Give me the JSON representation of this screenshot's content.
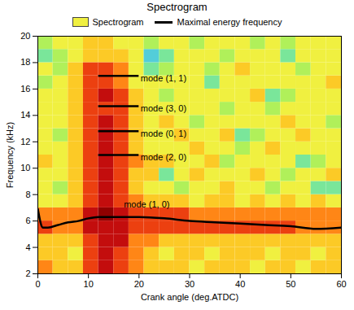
{
  "chart_data": {
    "type": "heatmap",
    "title": "Spectrogram",
    "x_label": "Crank angle (deg.ATDC)",
    "y_label": "Frequency (kHz)",
    "xlim": [
      0,
      60
    ],
    "ylim": [
      2,
      20
    ],
    "xticks": [
      0,
      10,
      20,
      30,
      40,
      50,
      60
    ],
    "yticks": [
      2,
      4,
      6,
      8,
      10,
      12,
      14,
      16,
      18,
      20
    ],
    "legend": "top",
    "cells": {
      "x_edges": [
        0,
        3,
        6,
        9,
        12,
        15,
        18,
        21,
        24,
        27,
        30,
        33,
        36,
        39,
        42,
        45,
        48,
        51,
        54,
        57,
        60
      ],
      "y_edges": [
        2,
        3,
        4,
        5,
        6,
        7,
        8,
        9,
        10,
        11,
        12,
        13,
        14,
        15,
        16,
        17,
        18,
        19,
        20
      ],
      "zlim": [
        0,
        10
      ],
      "z": [
        [
          7,
          6,
          6,
          8,
          9,
          8,
          7,
          6,
          6,
          6,
          5,
          6,
          6,
          6,
          5,
          6,
          6,
          5,
          6,
          6
        ],
        [
          6,
          6,
          5,
          8,
          9,
          8,
          7,
          6,
          5,
          6,
          6,
          5,
          6,
          6,
          6,
          5,
          6,
          6,
          5,
          6
        ],
        [
          6,
          6,
          6,
          8,
          9,
          9,
          7,
          7,
          6,
          6,
          6,
          6,
          6,
          6,
          6,
          6,
          6,
          6,
          6,
          6
        ],
        [
          8,
          7,
          7,
          9,
          9,
          9,
          8,
          8,
          8,
          8,
          8,
          8,
          8,
          8,
          8,
          8,
          8,
          7,
          7,
          7
        ],
        [
          7,
          7,
          7,
          9,
          10,
          9,
          8,
          8,
          8,
          8,
          7,
          7,
          7,
          7,
          7,
          7,
          7,
          7,
          7,
          7
        ],
        [
          5,
          5,
          6,
          8,
          9,
          8,
          7,
          6,
          6,
          6,
          5,
          6,
          6,
          5,
          6,
          5,
          6,
          5,
          6,
          5
        ],
        [
          5,
          4,
          6,
          8,
          9,
          8,
          6,
          5,
          5,
          4,
          5,
          5,
          6,
          5,
          5,
          4,
          5,
          5,
          3,
          3
        ],
        [
          5,
          5,
          6,
          8,
          9,
          8,
          6,
          6,
          3,
          5,
          6,
          5,
          5,
          5,
          6,
          5,
          4,
          5,
          5,
          6
        ],
        [
          6,
          5,
          6,
          8,
          9,
          8,
          7,
          6,
          6,
          5,
          5,
          6,
          4,
          5,
          5,
          5,
          5,
          3,
          4,
          5
        ],
        [
          5,
          5,
          6,
          8,
          9,
          8,
          6,
          5,
          5,
          5,
          6,
          5,
          5,
          4,
          5,
          6,
          5,
          5,
          5,
          5
        ],
        [
          5,
          4,
          6,
          8,
          9,
          8,
          6,
          5,
          5,
          6,
          5,
          5,
          6,
          3,
          4,
          5,
          5,
          6,
          5,
          5
        ],
        [
          5,
          5,
          6,
          8,
          9,
          8,
          6,
          5,
          6,
          5,
          4,
          5,
          5,
          5,
          5,
          5,
          6,
          5,
          5,
          4
        ],
        [
          5,
          5,
          6,
          8,
          8,
          8,
          6,
          5,
          5,
          5,
          5,
          5,
          4,
          5,
          5,
          4,
          5,
          5,
          5,
          5
        ],
        [
          5,
          5,
          6,
          8,
          9,
          8,
          6,
          5,
          4,
          5,
          5,
          5,
          5,
          5,
          6,
          3,
          4,
          5,
          5,
          5
        ],
        [
          4,
          5,
          6,
          8,
          8,
          7,
          5,
          5,
          5,
          5,
          5,
          3,
          5,
          5,
          5,
          5,
          5,
          5,
          5,
          6
        ],
        [
          5,
          4,
          6,
          8,
          8,
          7,
          5,
          3,
          4,
          5,
          5,
          4,
          5,
          6,
          5,
          5,
          5,
          4,
          5,
          5
        ],
        [
          3,
          4,
          5,
          6,
          6,
          6,
          5,
          2,
          3,
          5,
          5,
          5,
          4,
          5,
          5,
          5,
          3,
          5,
          5,
          5
        ],
        [
          4,
          5,
          5,
          6,
          6,
          5,
          5,
          4,
          5,
          5,
          4,
          5,
          5,
          5,
          4,
          5,
          4,
          5,
          5,
          5
        ]
      ]
    },
    "series": [
      {
        "name": "Spectrogram",
        "type": "heatmap",
        "color": "#f0f040"
      },
      {
        "name": "Maximal energy frequency",
        "type": "line",
        "color": "#000000",
        "x": [
          0,
          1,
          2,
          4,
          6,
          8,
          10,
          12,
          15,
          20,
          25,
          30,
          35,
          40,
          45,
          50,
          55,
          60
        ],
        "values": [
          6.9,
          5.5,
          5.5,
          5.7,
          5.9,
          6.0,
          6.2,
          6.3,
          6.3,
          6.3,
          6.2,
          6.0,
          5.9,
          5.8,
          5.7,
          5.6,
          5.4,
          5.5
        ]
      }
    ],
    "annotations": [
      {
        "text": "mode (1, 1)",
        "x": [
          12,
          20
        ],
        "y": 17
      },
      {
        "text": "mode (3, 0)",
        "x": [
          12,
          20
        ],
        "y": 14.7
      },
      {
        "text": "mode (0, 1)",
        "x": [
          12,
          20
        ],
        "y": 12.8
      },
      {
        "text": "mode (2, 0)",
        "x": [
          12,
          20
        ],
        "y": 11
      },
      {
        "text": "mode (1, 0)",
        "x": 17,
        "y": 7
      }
    ]
  }
}
